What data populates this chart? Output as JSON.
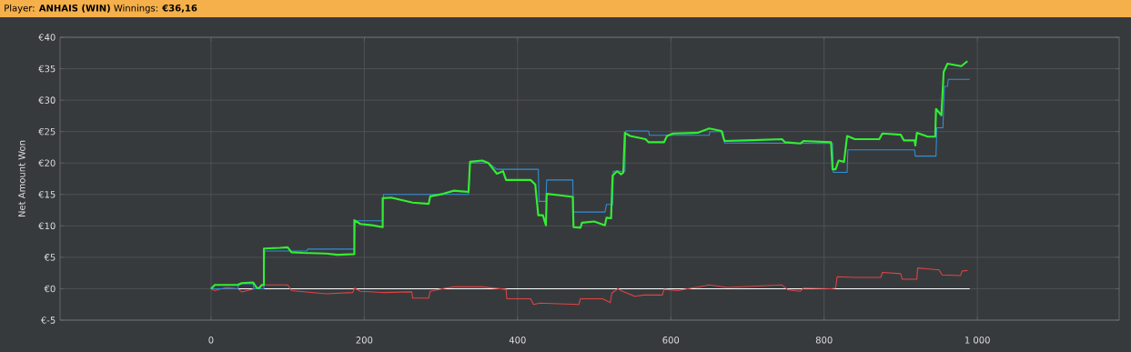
{
  "chart_data": {
    "type": "line",
    "title": "Player: **ANHAIS (WIN)** Winnings: **€36,16**",
    "ylabel": "Net Amount Won",
    "xlim": [
      -197,
      1185
    ],
    "ylim": [
      -5,
      40
    ],
    "xticks": [
      0,
      200,
      400,
      600,
      800,
      {
        "value": 1000,
        "label": "1 000"
      }
    ],
    "yticks": [
      {
        "value": -5,
        "label": "€-5"
      },
      {
        "value": 0,
        "label": "€0"
      },
      {
        "value": 5,
        "label": "€5"
      },
      {
        "value": 10,
        "label": "€10"
      },
      {
        "value": 15,
        "label": "€15"
      },
      {
        "value": 20,
        "label": "€20"
      },
      {
        "value": 25,
        "label": "€25"
      },
      {
        "value": 30,
        "label": "€30"
      },
      {
        "value": 35,
        "label": "€35"
      },
      {
        "value": 40,
        "label": "€40"
      }
    ],
    "grid": true,
    "series": [
      {
        "color": "#ffffff",
        "x": [
          0,
          990
        ],
        "values": [
          0,
          0
        ]
      },
      {
        "color": "#e04444",
        "x": [
          0,
          5,
          20,
          35,
          40,
          60,
          70,
          100,
          105,
          150,
          185,
          187,
          195,
          224,
          262,
          263,
          284,
          286,
          306,
          317,
          354,
          385,
          386,
          417,
          421,
          429,
          480,
          482,
          511,
          521,
          523,
          531,
          537,
          553,
          565,
          589,
          591,
          609,
          650,
          674,
          745,
          753,
          769,
          773,
          809,
          815,
          817,
          840,
          874,
          876,
          900,
          902,
          921,
          922,
          950,
          954,
          978,
          980,
          987
        ],
        "values": [
          0,
          -0.3,
          0.2,
          0,
          -0.5,
          0.1,
          0.6,
          0.6,
          -0.3,
          -0.8,
          -0.6,
          0.1,
          -0.4,
          -0.6,
          -0.5,
          -1.5,
          -1.5,
          -0.4,
          0.1,
          0.3,
          0.3,
          -0.1,
          -1.6,
          -1.6,
          -2.5,
          -2.3,
          -2.5,
          -1.6,
          -1.6,
          -2.2,
          -0.7,
          0,
          -0.4,
          -1.2,
          -1.0,
          -1.0,
          -0.1,
          -0.3,
          0.6,
          0.2,
          0.6,
          -0.2,
          -0.4,
          0.1,
          0.0,
          0.1,
          1.9,
          1.8,
          1.8,
          2.6,
          2.4,
          1.5,
          1.5,
          3.3,
          3.0,
          2.2,
          2.1,
          2.8,
          2.9
        ]
      },
      {
        "color": "#3090d8",
        "x": [
          0,
          35,
          36,
          55,
          56,
          69,
          70,
          125,
          126,
          187,
          188,
          224,
          225,
          336,
          338,
          362,
          373,
          427,
          428,
          437,
          438,
          472,
          473,
          514,
          516,
          524,
          525,
          540,
          541,
          571,
          572,
          650,
          651,
          668,
          670,
          811,
          812,
          830,
          831,
          918,
          919,
          946,
          947,
          955,
          957,
          961,
          962,
          990
        ],
        "values": [
          0,
          0,
          0.8,
          0.8,
          0,
          0,
          6.0,
          6.0,
          6.3,
          6.3,
          10.8,
          10.8,
          15.0,
          15.0,
          20.0,
          20.0,
          19.0,
          19.0,
          13.9,
          13.9,
          17.3,
          17.3,
          12.2,
          12.2,
          13.4,
          13.4,
          18.7,
          18.7,
          25.1,
          25.1,
          24.4,
          24.4,
          25.0,
          25.0,
          23.2,
          23.1,
          18.5,
          18.5,
          22.1,
          22.1,
          21.1,
          21.1,
          25.6,
          25.6,
          32.2,
          32.2,
          33.3,
          33.3
        ]
      },
      {
        "color": "#33ee33",
        "x": [
          0,
          5,
          35,
          40,
          55,
          60,
          63,
          66,
          69,
          69,
          90,
          100,
          105,
          120,
          150,
          165,
          187,
          187,
          195,
          210,
          224,
          224,
          235,
          263,
          284,
          286,
          303,
          317,
          336,
          338,
          354,
          362,
          373,
          381,
          385,
          417,
          423,
          427,
          433,
          437,
          438,
          453,
          472,
          473,
          482,
          484,
          500,
          514,
          516,
          522,
          524,
          530,
          535,
          538,
          540,
          547,
          567,
          571,
          591,
          595,
          603,
          635,
          650,
          666,
          670,
          698,
          745,
          749,
          769,
          773,
          809,
          811,
          815,
          819,
          826,
          830,
          840,
          872,
          876,
          900,
          904,
          918,
          919,
          921,
          935,
          945,
          946,
          953,
          956,
          961,
          979,
          987
        ],
        "values": [
          0,
          0.6,
          0.6,
          0.9,
          1.0,
          0.1,
          0.1,
          0.6,
          0.6,
          6.4,
          6.5,
          6.6,
          5.8,
          5.7,
          5.6,
          5.4,
          5.5,
          10.9,
          10.3,
          10.1,
          9.8,
          14.4,
          14.5,
          13.7,
          13.5,
          14.7,
          15.1,
          15.6,
          15.4,
          20.2,
          20.4,
          20.0,
          18.3,
          18.7,
          17.3,
          17.3,
          16.6,
          11.7,
          11.7,
          10.1,
          15.1,
          14.9,
          14.6,
          9.8,
          9.7,
          10.5,
          10.7,
          10.1,
          11.3,
          11.2,
          18.0,
          18.7,
          18.2,
          18.5,
          24.8,
          24.3,
          23.8,
          23.3,
          23.3,
          24.3,
          24.7,
          24.8,
          25.5,
          25.1,
          23.5,
          23.6,
          23.8,
          23.3,
          23.1,
          23.5,
          23.3,
          19.0,
          19.0,
          20.4,
          20.2,
          24.3,
          23.8,
          23.8,
          24.7,
          24.5,
          23.6,
          23.6,
          22.8,
          24.8,
          24.2,
          24.2,
          28.6,
          27.6,
          34.5,
          35.8,
          35.4,
          36.2
        ]
      }
    ]
  }
}
